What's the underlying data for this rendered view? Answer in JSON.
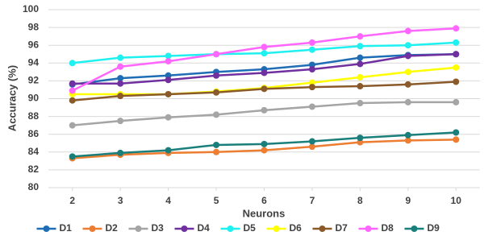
{
  "chart_data": {
    "type": "line",
    "x_label": "Neurons",
    "y_label": "Accuracy (%)",
    "x": [
      2,
      3,
      4,
      5,
      6,
      7,
      8,
      9,
      10
    ],
    "xlim": [
      1.5,
      10.5
    ],
    "xticks": [
      2,
      3,
      4,
      5,
      6,
      7,
      8,
      9,
      10
    ],
    "ylim": [
      80,
      100
    ],
    "yticks": [
      80,
      82,
      84,
      86,
      88,
      90,
      92,
      94,
      96,
      98,
      100
    ],
    "grid": true,
    "legend": "bottom",
    "series": [
      {
        "name": "D1",
        "color": "#1f6db5",
        "values": [
          91.6,
          92.3,
          92.6,
          93.0,
          93.3,
          93.8,
          94.6,
          94.9,
          95.0
        ]
      },
      {
        "name": "D2",
        "color": "#ed7d31",
        "values": [
          83.3,
          83.7,
          83.9,
          84.0,
          84.2,
          84.6,
          85.1,
          85.3,
          85.4
        ]
      },
      {
        "name": "D3",
        "color": "#a5a5a5",
        "values": [
          87.0,
          87.5,
          87.9,
          88.2,
          88.7,
          89.1,
          89.5,
          89.6,
          89.6
        ]
      },
      {
        "name": "D4",
        "color": "#7030a0",
        "values": [
          91.7,
          91.7,
          92.1,
          92.6,
          92.9,
          93.3,
          93.9,
          94.8,
          95.0
        ]
      },
      {
        "name": "D5",
        "color": "#1ff0f0",
        "values": [
          94.0,
          94.6,
          94.8,
          95.0,
          95.1,
          95.5,
          95.9,
          96.0,
          96.3
        ]
      },
      {
        "name": "D6",
        "color": "#ffff00",
        "values": [
          90.5,
          90.5,
          90.5,
          90.8,
          91.2,
          91.8,
          92.4,
          93.0,
          93.5
        ]
      },
      {
        "name": "D7",
        "color": "#8b5a2b",
        "values": [
          89.8,
          90.3,
          90.5,
          90.7,
          91.1,
          91.3,
          91.4,
          91.6,
          91.9
        ]
      },
      {
        "name": "D8",
        "color": "#ff66ff",
        "values": [
          90.9,
          93.6,
          94.2,
          95.0,
          95.8,
          96.3,
          97.0,
          97.6,
          97.9
        ]
      },
      {
        "name": "D9",
        "color": "#1a7f7a",
        "values": [
          83.5,
          83.9,
          84.2,
          84.8,
          84.9,
          85.2,
          85.6,
          85.9,
          86.2
        ]
      }
    ]
  }
}
